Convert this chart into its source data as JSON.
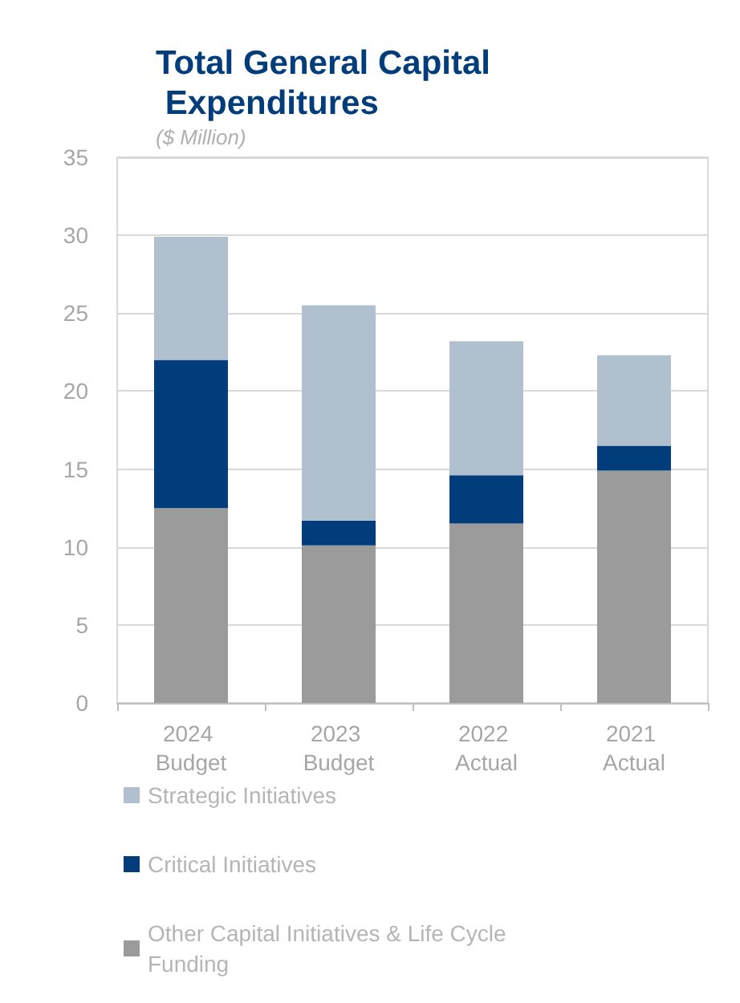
{
  "chart_data": {
    "type": "bar",
    "title": "Total General Capital Expenditures",
    "subtitle": "($ Million)",
    "categories": [
      "2024 Budget",
      "2023 Budget",
      "2022 Actual",
      "2021 Actual"
    ],
    "series": [
      {
        "name": "Other Capital Initiatives & Life Cycle Funding",
        "color": "#9b9b9b",
        "values": [
          12.5,
          10.1,
          11.5,
          14.9
        ]
      },
      {
        "name": "Critical Initiatives",
        "color": "#003d7a",
        "values": [
          9.5,
          1.6,
          3.1,
          1.6
        ]
      },
      {
        "name": "Strategic Initiatives",
        "color": "#b0c0ce",
        "values": [
          7.9,
          13.8,
          8.6,
          5.8
        ]
      }
    ],
    "stacked": true,
    "ylim": [
      0,
      35
    ],
    "yticks": [
      0,
      5,
      10,
      15,
      20,
      25,
      30,
      35
    ],
    "grid": "y",
    "legend": "bottom"
  }
}
